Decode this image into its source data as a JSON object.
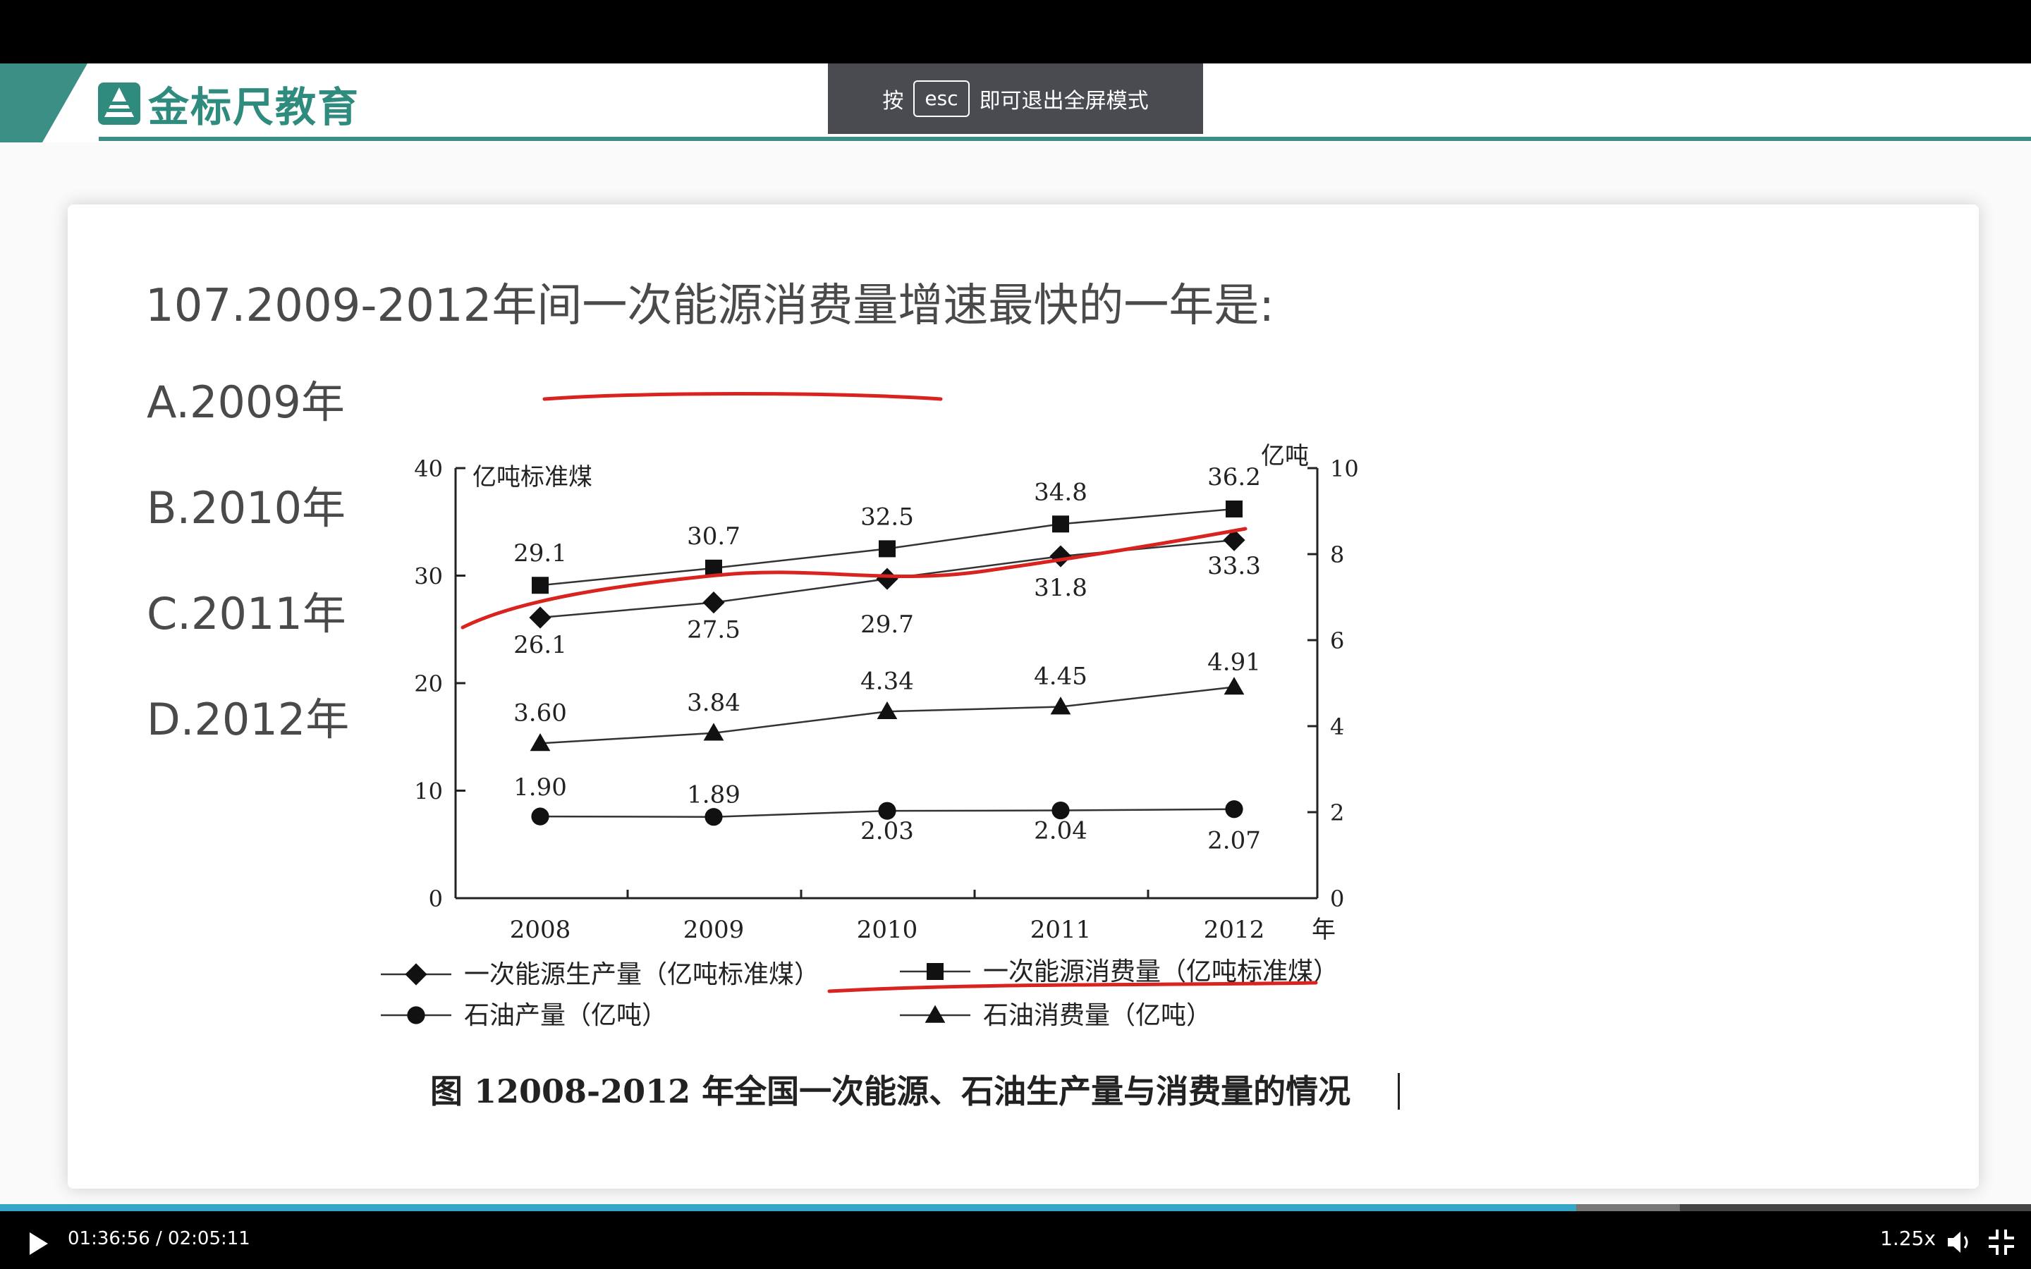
{
  "brand": {
    "name": "金标尺教育"
  },
  "fullscreen_toast": {
    "prefix": "按",
    "key": "esc",
    "suffix": "即可退出全屏模式"
  },
  "slide": {
    "question": "107.2009-2012年间一次能源消费量增速最快的一年是:",
    "options": [
      "A.2009年",
      "B.2010年",
      "C.2011年",
      "D.2012年"
    ],
    "figure_caption": "图 12008-2012 年全国一次能源、石油生产量与消费量的情况"
  },
  "chart_data": {
    "type": "line",
    "x": [
      "2008",
      "2009",
      "2010",
      "2011",
      "2012"
    ],
    "x_unit": "年",
    "y_left": {
      "label": "亿吨标准煤",
      "ticks": [
        0,
        10,
        20,
        30,
        40
      ],
      "range": [
        0,
        40
      ]
    },
    "y_right": {
      "label": "亿吨",
      "ticks": [
        0,
        2,
        4,
        6,
        8,
        10
      ],
      "range": [
        0,
        10
      ]
    },
    "series": [
      {
        "name": "一次能源生产量（亿吨标准煤）",
        "marker": "diamond",
        "axis": "left",
        "values": [
          26.1,
          27.5,
          29.7,
          31.8,
          33.3
        ],
        "labels": [
          "26.1",
          "27.5",
          "29.7",
          "31.8",
          "33.3"
        ]
      },
      {
        "name": "一次能源消费量（亿吨标准煤）",
        "marker": "square",
        "axis": "left",
        "values": [
          29.1,
          30.7,
          32.5,
          34.8,
          36.2
        ],
        "labels": [
          "29.1",
          "30.7",
          "32.5",
          "34.8",
          "36.2"
        ]
      },
      {
        "name": "石油产量（亿吨）",
        "marker": "circle",
        "axis": "right",
        "values": [
          1.9,
          1.89,
          2.03,
          2.04,
          2.07
        ],
        "labels": [
          "1.90",
          "1.89",
          "2.03",
          "2.04",
          "2.07"
        ]
      },
      {
        "name": "石油消费量（亿吨）",
        "marker": "triangle",
        "axis": "right",
        "values": [
          3.6,
          3.84,
          4.34,
          4.45,
          4.91
        ],
        "labels": [
          "3.60",
          "3.84",
          "4.34",
          "4.45",
          "4.91"
        ]
      }
    ],
    "legend_placement": "bottom",
    "grid": false
  },
  "annotation_color": "#d8231f",
  "player": {
    "time": "01:36:56 / 02:05:11",
    "played_fraction": 0.776,
    "buffered_fraction": 0.827,
    "speed": "1.25x",
    "accent_color": "#35a6c6"
  }
}
